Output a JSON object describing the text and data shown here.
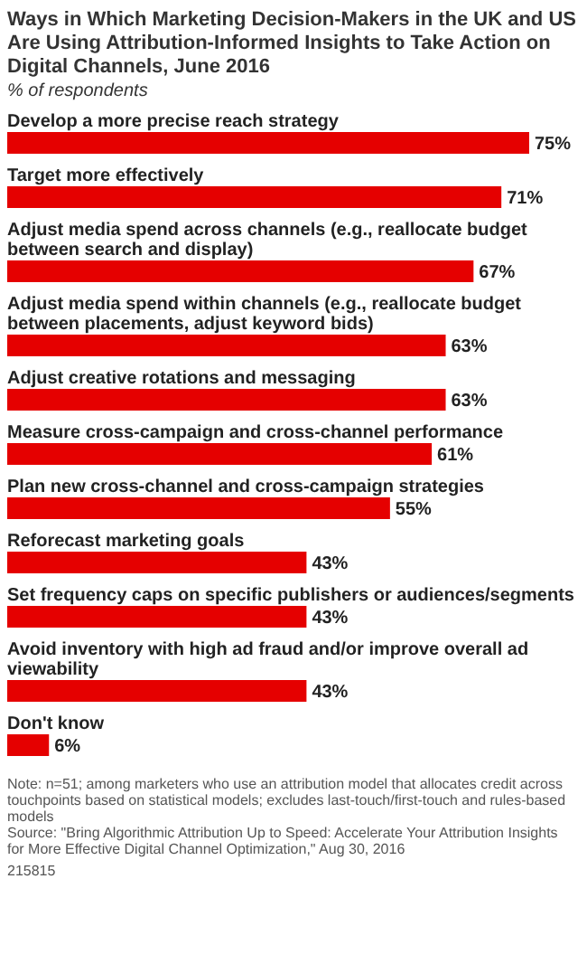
{
  "chart_data": {
    "type": "bar",
    "orientation": "horizontal",
    "title": "Ways in Which Marketing Decision-Makers in the UK and US Are Using Attribution-Informed Insights to Take Action on Digital Channels, June 2016",
    "subtitle": "% of respondents",
    "categories": [
      "Develop a more precise reach strategy",
      "Target more effectively",
      "Adjust media spend across channels (e.g., reallocate budget between search and display)",
      "Adjust media spend within channels (e.g., reallocate budget between placements, adjust keyword bids)",
      "Adjust creative rotations and messaging",
      "Measure cross-campaign and cross-channel performance",
      "Plan new cross-channel and cross-campaign strategies",
      "Reforecast marketing goals",
      "Set frequency caps on specific publishers or audiences/segments",
      "Avoid inventory with high ad fraud and/or improve overall ad viewability",
      "Don't know"
    ],
    "values": [
      75,
      71,
      67,
      63,
      63,
      61,
      55,
      43,
      43,
      43,
      6
    ],
    "value_labels": [
      "75%",
      "71%",
      "67%",
      "63%",
      "63%",
      "61%",
      "55%",
      "43%",
      "43%",
      "43%",
      "6%"
    ],
    "color": "#e50000",
    "annotations": [
      "Note: n=51; among marketers who use an attribution model that allocates credit across touchpoints based on statistical models; excludes last-touch/first-touch and rules-based models",
      "Source: \"Bring Algorithmic Attribution Up to Speed: Accelerate Your Attribution Insights for More Effective Digital Channel Optimization,\" Aug 30, 2016",
      "215815"
    ]
  }
}
